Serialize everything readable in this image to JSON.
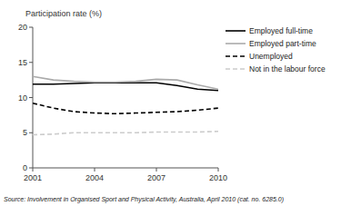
{
  "chart_data": {
    "type": "line",
    "ylabel": "Participation rate (%)",
    "annotation": "Source:  Involvement in Organised Sport and Physical Activity, Australia, April 2010 (cat.  no.  6285.0)",
    "x": [
      2001,
      2002,
      2003,
      2004,
      2005,
      2006,
      2007,
      2008,
      2009,
      2010
    ],
    "series": [
      {
        "name": "Employed full-time",
        "color": "#000000",
        "line_style": "solid",
        "values": [
          11.9,
          11.9,
          12.0,
          12.1,
          12.1,
          12.1,
          12.1,
          11.7,
          11.2,
          11.0
        ]
      },
      {
        "name": "Employed part-time",
        "color": "#aaaaaa",
        "line_style": "solid",
        "values": [
          13.0,
          12.5,
          12.3,
          12.2,
          12.2,
          12.3,
          12.6,
          12.5,
          11.8,
          11.2
        ]
      },
      {
        "name": "Unemployed",
        "color": "#000000",
        "line_style": "dashed",
        "values": [
          9.2,
          8.5,
          8.0,
          7.8,
          7.7,
          7.8,
          7.9,
          8.0,
          8.2,
          8.5
        ]
      },
      {
        "name": "Not in the labour force",
        "color": "#cccccc",
        "line_style": "dashed",
        "values": [
          4.7,
          4.8,
          5.0,
          5.0,
          5.0,
          5.0,
          5.1,
          5.1,
          5.1,
          5.2
        ]
      }
    ],
    "xlim": [
      2001,
      2010
    ],
    "xticks": [
      2001,
      2004,
      2007,
      2010
    ],
    "ylim": [
      0,
      20
    ],
    "yticks": [
      0,
      5,
      10,
      15,
      20
    ],
    "grid": false,
    "legend": "right"
  }
}
